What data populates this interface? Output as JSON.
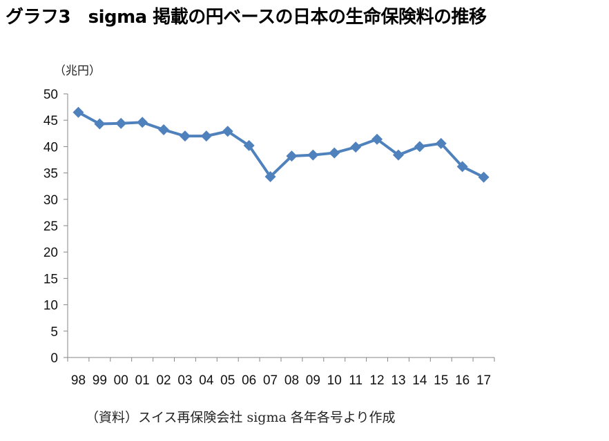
{
  "title": "グラフ3　sigma 掲載の円ベースの日本の生命保険料の推移",
  "unit_label": "（兆円）",
  "source_note": "（資料）スイス再保険会社 sigma 各年各号より作成",
  "colors": {
    "series": "#4F81BD",
    "axis": "#868686"
  },
  "chart_data": {
    "type": "line",
    "title": "グラフ3　sigma 掲載の円ベースの日本の生命保険料の推移",
    "xlabel": "",
    "ylabel": "（兆円）",
    "categories": [
      "98",
      "99",
      "00",
      "01",
      "02",
      "03",
      "04",
      "05",
      "06",
      "07",
      "08",
      "09",
      "10",
      "11",
      "12",
      "13",
      "14",
      "15",
      "16",
      "17"
    ],
    "series": [
      {
        "name": "生命保険料",
        "values": [
          46.5,
          44.3,
          44.4,
          44.6,
          43.2,
          42.0,
          42.0,
          42.9,
          40.2,
          34.3,
          38.2,
          38.4,
          38.8,
          39.9,
          41.4,
          38.4,
          40.0,
          40.6,
          36.2,
          34.2
        ]
      }
    ],
    "ylim": [
      0,
      50
    ],
    "yticks": [
      0,
      5,
      10,
      15,
      20,
      25,
      30,
      35,
      40,
      45,
      50
    ],
    "grid": false,
    "legend": "none",
    "marker": "diamond"
  }
}
